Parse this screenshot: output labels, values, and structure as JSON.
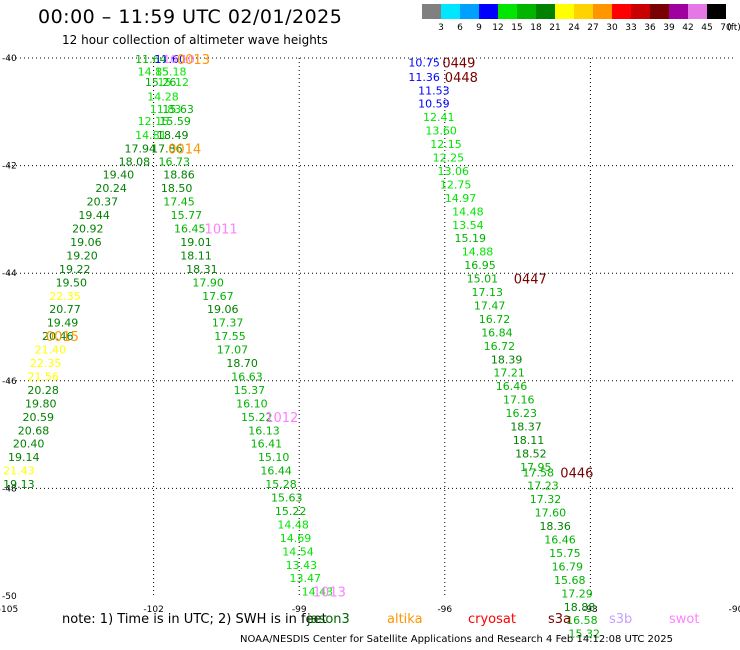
{
  "header": {
    "title": "00:00 – 11:59 UTC 02/01/2025",
    "subtitle": "12 hour collection of altimeter wave heights"
  },
  "legend": {
    "unit": "(ft)",
    "bins": [
      {
        "label": "3",
        "color": "#808080"
      },
      {
        "label": "6",
        "color": "#00e6ff"
      },
      {
        "label": "9",
        "color": "#00a0ff"
      },
      {
        "label": "12",
        "color": "#0000ff"
      },
      {
        "label": "15",
        "color": "#00e600"
      },
      {
        "label": "18",
        "color": "#00b400"
      },
      {
        "label": "21",
        "color": "#008200"
      },
      {
        "label": "24",
        "color": "#ffff00"
      },
      {
        "label": "27",
        "color": "#ffd200"
      },
      {
        "label": "30",
        "color": "#ff9600"
      },
      {
        "label": "33",
        "color": "#ff0000"
      },
      {
        "label": "36",
        "color": "#c80000"
      },
      {
        "label": "39",
        "color": "#780000"
      },
      {
        "label": "42",
        "color": "#a000a0"
      },
      {
        "label": "45",
        "color": "#e678e6"
      },
      {
        "label": "70",
        "color": "#000000"
      }
    ]
  },
  "footer": {
    "note": "note:  1) Time is in UTC; 2) SWH is in feet",
    "satellites": [
      {
        "name": "jason3",
        "color": "#006400"
      },
      {
        "name": "altika",
        "color": "#ff9600"
      },
      {
        "name": "cryosat",
        "color": "#ff0000"
      },
      {
        "name": "s3a",
        "color": "#780000"
      },
      {
        "name": "s3b",
        "color": "#c8a0ff"
      },
      {
        "name": "swot",
        "color": "#ff80ff"
      }
    ],
    "credit": "NOAA/NESDIS Center for Satellite Applications and Research     4 Feb 14:12:08 UTC 2025"
  },
  "chart_data": {
    "type": "scatter",
    "title": "00:00 – 11:59 UTC 02/01/2025",
    "xlim": [
      -105,
      -90
    ],
    "ylim": [
      -50,
      -40
    ],
    "xticks": [
      -105,
      -102,
      -99,
      -96,
      -93,
      -90
    ],
    "yticks": [
      -40,
      -42,
      -44,
      -46,
      -48,
      -50
    ],
    "grid": true,
    "points": [
      {
        "x": -102.38,
        "y": -40.02,
        "v": "11.64",
        "c": "#00b400"
      },
      {
        "x": -101.98,
        "y": -40.02,
        "v": "11.60",
        "c": "#0000ff"
      },
      {
        "x": -101.8,
        "y": -40.02,
        "v": "10.10",
        "c": "#ff80ff"
      },
      {
        "x": -102.33,
        "y": -40.25,
        "v": "14.85",
        "c": "#00e600"
      },
      {
        "x": -101.97,
        "y": -40.25,
        "v": "15.18",
        "c": "#00e600"
      },
      {
        "x": -102.18,
        "y": -40.45,
        "v": "15.26",
        "c": "#00b400"
      },
      {
        "x": -101.92,
        "y": -40.45,
        "v": "15.12",
        "c": "#00e600"
      },
      {
        "x": -102.13,
        "y": -40.72,
        "v": "14.28",
        "c": "#00e600"
      },
      {
        "x": -102.08,
        "y": -40.95,
        "v": "11.83",
        "c": "#00e600"
      },
      {
        "x": -101.82,
        "y": -40.95,
        "v": "15.63",
        "c": "#00b400"
      },
      {
        "x": -102.33,
        "y": -41.17,
        "v": "12.15",
        "c": "#00e600"
      },
      {
        "x": -101.88,
        "y": -41.17,
        "v": "15.59",
        "c": "#00b400"
      },
      {
        "x": -102.38,
        "y": -41.43,
        "v": "14.81",
        "c": "#00e600"
      },
      {
        "x": -101.93,
        "y": -41.43,
        "v": "18.49",
        "c": "#008200"
      },
      {
        "x": -102.6,
        "y": -41.68,
        "v": "17.94",
        "c": "#008200"
      },
      {
        "x": -102.05,
        "y": -41.68,
        "v": "17.86",
        "c": "#008200"
      },
      {
        "x": -102.72,
        "y": -41.92,
        "v": "18.08",
        "c": "#008200"
      },
      {
        "x": -101.9,
        "y": -41.92,
        "v": "16.73",
        "c": "#00b400"
      },
      {
        "x": -103.05,
        "y": -42.17,
        "v": "19.40",
        "c": "#008200"
      },
      {
        "x": -101.8,
        "y": -42.17,
        "v": "18.86",
        "c": "#008200"
      },
      {
        "x": -103.2,
        "y": -42.42,
        "v": "20.24",
        "c": "#008200"
      },
      {
        "x": -101.85,
        "y": -42.42,
        "v": "18.50",
        "c": "#008200"
      },
      {
        "x": -103.38,
        "y": -42.67,
        "v": "20.37",
        "c": "#008200"
      },
      {
        "x": -101.8,
        "y": -42.67,
        "v": "17.45",
        "c": "#00b400"
      },
      {
        "x": -103.55,
        "y": -42.92,
        "v": "19.44",
        "c": "#008200"
      },
      {
        "x": -101.65,
        "y": -42.92,
        "v": "15.77",
        "c": "#00b400"
      },
      {
        "x": -103.68,
        "y": -43.17,
        "v": "20.92",
        "c": "#008200"
      },
      {
        "x": -101.58,
        "y": -43.17,
        "v": "16.45",
        "c": "#00b400"
      },
      {
        "x": -103.72,
        "y": -43.42,
        "v": "19.06",
        "c": "#008200"
      },
      {
        "x": -101.45,
        "y": -43.42,
        "v": "19.01",
        "c": "#008200"
      },
      {
        "x": -103.8,
        "y": -43.67,
        "v": "19.20",
        "c": "#008200"
      },
      {
        "x": -101.45,
        "y": -43.67,
        "v": "18.11",
        "c": "#008200"
      },
      {
        "x": -103.95,
        "y": -43.92,
        "v": "19.22",
        "c": "#008200"
      },
      {
        "x": -101.33,
        "y": -43.92,
        "v": "18.31",
        "c": "#008200"
      },
      {
        "x": -104.02,
        "y": -44.17,
        "v": "19.50",
        "c": "#008200"
      },
      {
        "x": -101.2,
        "y": -44.17,
        "v": "17.90",
        "c": "#00b400"
      },
      {
        "x": -104.15,
        "y": -44.42,
        "v": "22.35",
        "c": "#ffff00"
      },
      {
        "x": -101.0,
        "y": -44.42,
        "v": "17.67",
        "c": "#00b400"
      },
      {
        "x": -104.15,
        "y": -44.67,
        "v": "20.77",
        "c": "#008200"
      },
      {
        "x": -100.9,
        "y": -44.67,
        "v": "19.06",
        "c": "#008200"
      },
      {
        "x": -104.2,
        "y": -44.92,
        "v": "19.49",
        "c": "#008200"
      },
      {
        "x": -100.8,
        "y": -44.92,
        "v": "17.37",
        "c": "#00b400"
      },
      {
        "x": -104.3,
        "y": -45.17,
        "v": "20.46",
        "c": "#008200"
      },
      {
        "x": -100.75,
        "y": -45.17,
        "v": "17.55",
        "c": "#00b400"
      },
      {
        "x": -104.45,
        "y": -45.42,
        "v": "21.40",
        "c": "#ffff00"
      },
      {
        "x": -100.7,
        "y": -45.42,
        "v": "17.07",
        "c": "#00b400"
      },
      {
        "x": -104.55,
        "y": -45.67,
        "v": "22.35",
        "c": "#ffff00"
      },
      {
        "x": -100.5,
        "y": -45.67,
        "v": "18.70",
        "c": "#008200"
      },
      {
        "x": -104.6,
        "y": -45.92,
        "v": "21.56",
        "c": "#ffff00"
      },
      {
        "x": -100.4,
        "y": -45.92,
        "v": "16.63",
        "c": "#00b400"
      },
      {
        "x": -104.6,
        "y": -46.17,
        "v": "20.28",
        "c": "#008200"
      },
      {
        "x": -100.35,
        "y": -46.17,
        "v": "15.37",
        "c": "#00b400"
      },
      {
        "x": -104.65,
        "y": -46.42,
        "v": "19.80",
        "c": "#008200"
      },
      {
        "x": -100.3,
        "y": -46.42,
        "v": "16.10",
        "c": "#00b400"
      },
      {
        "x": -104.7,
        "y": -46.67,
        "v": "20.59",
        "c": "#008200"
      },
      {
        "x": -100.2,
        "y": -46.67,
        "v": "15.22",
        "c": "#00b400"
      },
      {
        "x": -104.8,
        "y": -46.92,
        "v": "20.68",
        "c": "#008200"
      },
      {
        "x": -100.05,
        "y": -46.92,
        "v": "16.13",
        "c": "#00b400"
      },
      {
        "x": -104.9,
        "y": -47.17,
        "v": "20.40",
        "c": "#008200"
      },
      {
        "x": -100.0,
        "y": -47.17,
        "v": "16.41",
        "c": "#00b400"
      },
      {
        "x": -105.0,
        "y": -47.42,
        "v": "19.14",
        "c": "#008200"
      },
      {
        "x": -99.85,
        "y": -47.42,
        "v": "15.10",
        "c": "#00b400"
      },
      {
        "x": -105.1,
        "y": -47.67,
        "v": "21.43",
        "c": "#ffff00"
      },
      {
        "x": -99.8,
        "y": -47.67,
        "v": "16.44",
        "c": "#00b400"
      },
      {
        "x": -105.1,
        "y": -47.92,
        "v": "19.13",
        "c": "#008200"
      },
      {
        "x": -99.7,
        "y": -47.92,
        "v": "15.28",
        "c": "#00b400"
      },
      {
        "x": -99.58,
        "y": -48.17,
        "v": "15.63",
        "c": "#00b400"
      },
      {
        "x": -99.5,
        "y": -48.42,
        "v": "15.22",
        "c": "#00b400"
      },
      {
        "x": -99.45,
        "y": -48.67,
        "v": "14.48",
        "c": "#00e600"
      },
      {
        "x": -99.4,
        "y": -48.92,
        "v": "14.69",
        "c": "#00e600"
      },
      {
        "x": -99.35,
        "y": -49.17,
        "v": "14.54",
        "c": "#00e600"
      },
      {
        "x": -99.28,
        "y": -49.42,
        "v": "13.43",
        "c": "#00e600"
      },
      {
        "x": -99.2,
        "y": -49.67,
        "v": "13.47",
        "c": "#00e600"
      },
      {
        "x": -98.95,
        "y": -49.92,
        "v": "14.43",
        "c": "#00e600"
      },
      {
        "x": -96.75,
        "y": -40.08,
        "v": "10.75",
        "c": "#0000ff"
      },
      {
        "x": -96.75,
        "y": -40.35,
        "v": "11.36",
        "c": "#0000ff"
      },
      {
        "x": -96.55,
        "y": -40.6,
        "v": "11.53",
        "c": "#0000ff"
      },
      {
        "x": -96.55,
        "y": -40.85,
        "v": "10.59",
        "c": "#0000ff"
      },
      {
        "x": -96.45,
        "y": -41.1,
        "v": "12.41",
        "c": "#00e600"
      },
      {
        "x": -96.4,
        "y": -41.35,
        "v": "13.60",
        "c": "#00e600"
      },
      {
        "x": -96.3,
        "y": -41.6,
        "v": "12.15",
        "c": "#00e600"
      },
      {
        "x": -96.25,
        "y": -41.85,
        "v": "12.25",
        "c": "#00e600"
      },
      {
        "x": -96.15,
        "y": -42.1,
        "v": "13.06",
        "c": "#00e600"
      },
      {
        "x": -96.1,
        "y": -42.35,
        "v": "12.75",
        "c": "#00e600"
      },
      {
        "x": -96.0,
        "y": -42.6,
        "v": "14.97",
        "c": "#00e600"
      },
      {
        "x": -95.85,
        "y": -42.85,
        "v": "14.48",
        "c": "#00e600"
      },
      {
        "x": -95.85,
        "y": -43.1,
        "v": "13.54",
        "c": "#00e600"
      },
      {
        "x": -95.8,
        "y": -43.35,
        "v": "15.19",
        "c": "#00b400"
      },
      {
        "x": -95.65,
        "y": -43.6,
        "v": "14.88",
        "c": "#00e600"
      },
      {
        "x": -95.6,
        "y": -43.85,
        "v": "16.95",
        "c": "#00b400"
      },
      {
        "x": -95.55,
        "y": -44.1,
        "v": "15.01",
        "c": "#00b400"
      },
      {
        "x": -95.45,
        "y": -44.35,
        "v": "17.13",
        "c": "#00b400"
      },
      {
        "x": -95.4,
        "y": -44.6,
        "v": "17.47",
        "c": "#00b400"
      },
      {
        "x": -95.3,
        "y": -44.85,
        "v": "16.72",
        "c": "#00b400"
      },
      {
        "x": -95.25,
        "y": -45.1,
        "v": "16.84",
        "c": "#00b400"
      },
      {
        "x": -95.2,
        "y": -45.35,
        "v": "16.72",
        "c": "#00b400"
      },
      {
        "x": -95.05,
        "y": -45.6,
        "v": "18.39",
        "c": "#008200"
      },
      {
        "x": -95.0,
        "y": -45.85,
        "v": "17.21",
        "c": "#00b400"
      },
      {
        "x": -94.95,
        "y": -46.1,
        "v": "16.46",
        "c": "#00b400"
      },
      {
        "x": -94.8,
        "y": -46.35,
        "v": "17.16",
        "c": "#00b400"
      },
      {
        "x": -94.75,
        "y": -46.6,
        "v": "16.23",
        "c": "#00b400"
      },
      {
        "x": -94.65,
        "y": -46.85,
        "v": "18.37",
        "c": "#008200"
      },
      {
        "x": -94.6,
        "y": -47.1,
        "v": "18.11",
        "c": "#008200"
      },
      {
        "x": -94.55,
        "y": -47.35,
        "v": "18.52",
        "c": "#008200"
      },
      {
        "x": -94.45,
        "y": -47.6,
        "v": "17.95",
        "c": "#00b400"
      },
      {
        "x": -94.4,
        "y": -47.7,
        "v": "17.58",
        "c": "#00b400"
      },
      {
        "x": -94.3,
        "y": -47.95,
        "v": "17.23",
        "c": "#00b400"
      },
      {
        "x": -94.25,
        "y": -48.2,
        "v": "17.32",
        "c": "#00b400"
      },
      {
        "x": -94.15,
        "y": -48.45,
        "v": "17.60",
        "c": "#00b400"
      },
      {
        "x": -94.05,
        "y": -48.7,
        "v": "18.36",
        "c": "#008200"
      },
      {
        "x": -93.95,
        "y": -48.95,
        "v": "16.46",
        "c": "#00b400"
      },
      {
        "x": -93.85,
        "y": -49.2,
        "v": "15.75",
        "c": "#00b400"
      },
      {
        "x": -93.8,
        "y": -49.45,
        "v": "16.79",
        "c": "#00b400"
      },
      {
        "x": -93.75,
        "y": -49.7,
        "v": "15.68",
        "c": "#00b400"
      },
      {
        "x": -93.6,
        "y": -49.95,
        "v": "17.29",
        "c": "#00b400"
      },
      {
        "x": -93.55,
        "y": -50.2,
        "v": "18.88",
        "c": "#008200"
      },
      {
        "x": -93.5,
        "y": -50.45,
        "v": "16.58",
        "c": "#00b400"
      },
      {
        "x": -93.45,
        "y": -50.7,
        "v": "15.32",
        "c": "#00b400"
      }
    ],
    "passes": [
      {
        "x": -101.52,
        "y": -40.02,
        "label": "0013",
        "c": "#ff9600"
      },
      {
        "x": -101.7,
        "y": -41.68,
        "label": "0014",
        "c": "#ff9600"
      },
      {
        "x": -104.22,
        "y": -45.17,
        "label": "0015",
        "c": "#ff9600"
      },
      {
        "x": -100.95,
        "y": -43.17,
        "label": "1011",
        "c": "#ff80ff"
      },
      {
        "x": -99.7,
        "y": -46.67,
        "label": "1012",
        "c": "#ff80ff"
      },
      {
        "x": -98.72,
        "y": -49.92,
        "label": "1013",
        "c": "#ff80ff"
      },
      {
        "x": -96.05,
        "y": -40.08,
        "label": "0449",
        "c": "#780000"
      },
      {
        "x": -96.0,
        "y": -40.35,
        "label": "0448",
        "c": "#780000"
      },
      {
        "x": -94.58,
        "y": -44.1,
        "label": "0447",
        "c": "#780000"
      },
      {
        "x": -93.62,
        "y": -47.7,
        "label": "0446",
        "c": "#780000"
      }
    ]
  }
}
